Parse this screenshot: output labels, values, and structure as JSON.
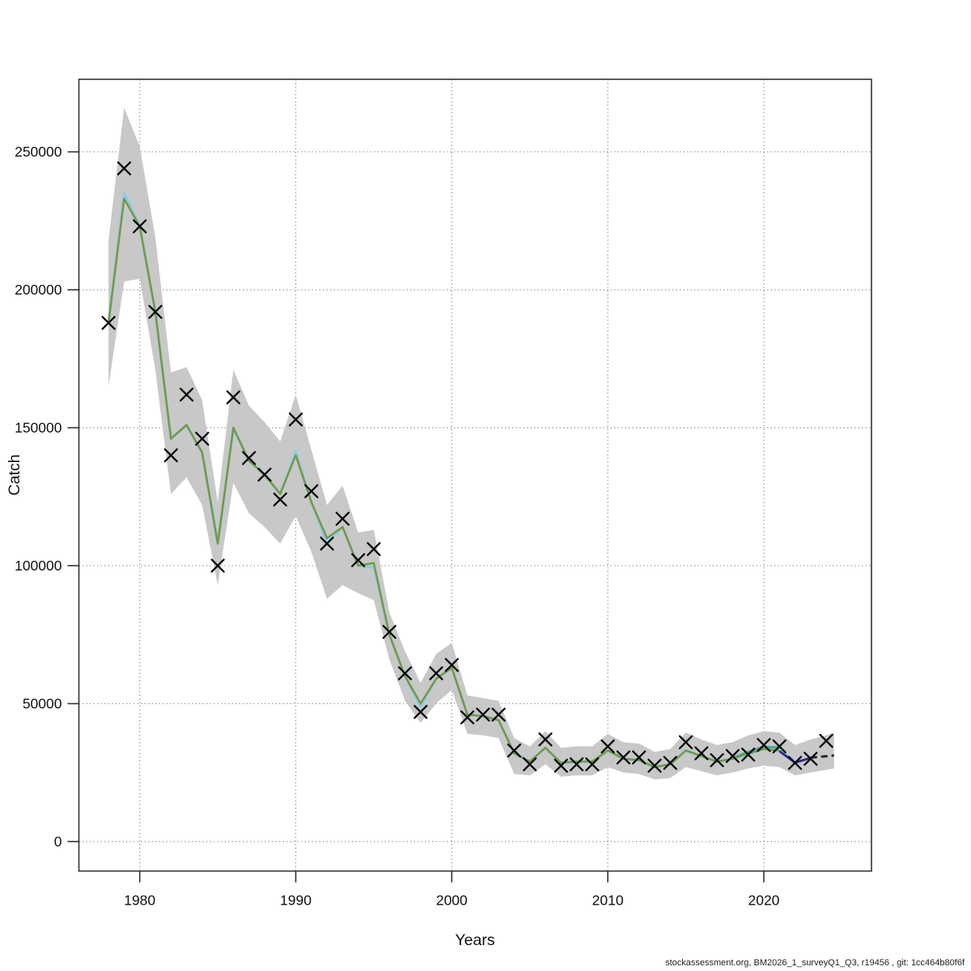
{
  "page": {
    "background": "#ffffff"
  },
  "footer": {
    "text": "stockassessment.org, BM2026_1_surveyQ1_Q3, r19456 , git: 1cc464b80f6f"
  },
  "chart_data": {
    "type": "line",
    "title": "",
    "xlabel": "Years",
    "ylabel": "Catch",
    "xlim": [
      1976.1,
      2026.9
    ],
    "ylim": [
      -10700,
      276300
    ],
    "x_ticks": [
      1980,
      1990,
      2000,
      2010,
      2020
    ],
    "y_ticks": [
      0,
      50000,
      100000,
      150000,
      200000,
      250000
    ],
    "grid": "dotted",
    "grid_color": "#9a9a9a",
    "frame_color": "#333333",
    "band": {
      "name": "confidence-band",
      "color": "#c8c8c8",
      "x": [
        1978,
        1979,
        1980,
        1981,
        1982,
        1983,
        1984,
        1985,
        1986,
        1987,
        1988,
        1989,
        1990,
        1991,
        1992,
        1993,
        1994,
        1995,
        1996,
        1997,
        1998,
        1999,
        2000,
        2001,
        2002,
        2003,
        2004,
        2005,
        2006,
        2007,
        2008,
        2009,
        2010,
        2011,
        2012,
        2013,
        2014,
        2015,
        2016,
        2017,
        2018,
        2019,
        2020,
        2021,
        2022,
        2023,
        2024,
        2024.5
      ],
      "lo": [
        165000,
        203000,
        204000,
        171000,
        126000,
        132000,
        122000,
        93000,
        130000,
        119000,
        114000,
        108000,
        118000,
        105000,
        88000,
        93000,
        90000,
        87500,
        66000,
        51000,
        43000,
        50000,
        55000,
        39000,
        38500,
        37500,
        24500,
        24000,
        28000,
        23500,
        24000,
        24000,
        27000,
        25000,
        24500,
        22500,
        23000,
        27000,
        25500,
        24000,
        25000,
        26500,
        27500,
        27000,
        24000,
        25000,
        26000,
        26500
      ],
      "hi": [
        218000,
        266000,
        252000,
        219000,
        170000,
        172000,
        160000,
        123000,
        171000,
        158000,
        152000,
        145000,
        162000,
        142000,
        122000,
        129000,
        112000,
        113000,
        83000,
        69000,
        57500,
        68000,
        72000,
        53000,
        52000,
        51000,
        37500,
        34500,
        40000,
        34000,
        34500,
        34500,
        39000,
        36000,
        35500,
        32500,
        33500,
        39500,
        37000,
        35000,
        36000,
        38500,
        40000,
        39500,
        35000,
        37000,
        38500,
        39500
      ]
    },
    "series": [
      {
        "name": "fit-run-cyan",
        "type": "line",
        "color": "#88CCEE",
        "width": 3.4,
        "x": [
          1978,
          1979,
          1980,
          1981,
          1982,
          1983,
          1984,
          1985,
          1986,
          1987,
          1988,
          1989,
          1990,
          1991,
          1992,
          1993,
          1994,
          1995,
          1996,
          1997,
          1998,
          1999,
          2000,
          2001,
          2002,
          2003,
          2004,
          2005,
          2006,
          2007,
          2008,
          2009,
          2010,
          2011,
          2012,
          2013,
          2014,
          2015,
          2016,
          2017,
          2018,
          2019,
          2020,
          2021,
          2022
        ],
        "values": [
          188000,
          235000,
          223000,
          192000,
          146000,
          151000,
          141000,
          108000,
          150000,
          138000,
          133000,
          126000,
          141500,
          123000,
          108500,
          114000,
          100000,
          99500,
          75000,
          60000,
          49000,
          59000,
          63000,
          46000,
          45500,
          44000,
          32000,
          29000,
          34000,
          28500,
          29000,
          29000,
          33000,
          30000,
          29500,
          27000,
          28000,
          33000,
          31000,
          29000,
          30000,
          31500,
          33800,
          33200,
          29000
        ]
      },
      {
        "name": "retro-run-teal",
        "type": "line",
        "color": "#44AA99",
        "width": 3.0,
        "x": [
          2018,
          2019,
          2020,
          2021
        ],
        "values": [
          30300,
          32500,
          34300,
          34100
        ]
      },
      {
        "name": "fit-run-green",
        "type": "line",
        "color": "#78963C",
        "width": 2.4,
        "x": [
          1978,
          1979,
          1980,
          1981,
          1982,
          1983,
          1984,
          1985,
          1986,
          1987,
          1988,
          1989,
          1990,
          1991,
          1992,
          1993,
          1994,
          1995,
          1996,
          1997,
          1998,
          1999,
          2000,
          2001,
          2002,
          2003,
          2004,
          2005,
          2006,
          2007,
          2008,
          2009,
          2010,
          2011,
          2012,
          2013,
          2014,
          2015,
          2016,
          2017,
          2018,
          2019,
          2020,
          2021
        ],
        "values": [
          188000,
          233000,
          223000,
          192000,
          146000,
          151000,
          141000,
          108000,
          150000,
          138000,
          133000,
          126000,
          140000,
          123000,
          110000,
          114000,
          100000,
          101000,
          75000,
          60000,
          50000,
          59000,
          63000,
          46000,
          45500,
          44000,
          32000,
          29000,
          34000,
          28500,
          29000,
          29000,
          33000,
          30000,
          29500,
          27000,
          28000,
          33000,
          31000,
          29000,
          30000,
          32000,
          33500,
          33000
        ]
      },
      {
        "name": "retro-run-navy",
        "type": "line",
        "color": "#332288",
        "width": 2.8,
        "x": [
          2021,
          2022,
          2023
        ],
        "values": [
          32800,
          28600,
          30300
        ]
      },
      {
        "name": "forecast-median",
        "type": "line",
        "color": "#222222",
        "width": 2.8,
        "dash": "8 5",
        "x": [
          2023,
          2024.5
        ],
        "values": [
          30400,
          31200
        ]
      },
      {
        "name": "observed-catch",
        "type": "scatter",
        "marker": "x",
        "color": "#0a0a0a",
        "marker_size": 7.5,
        "marker_stroke": 2.3,
        "x": [
          1978,
          1979,
          1980,
          1981,
          1982,
          1983,
          1984,
          1985,
          1986,
          1987,
          1988,
          1989,
          1990,
          1991,
          1992,
          1993,
          1994,
          1995,
          1996,
          1997,
          1998,
          1999,
          2000,
          2001,
          2002,
          2003,
          2004,
          2005,
          2006,
          2007,
          2008,
          2009,
          2010,
          2011,
          2012,
          2013,
          2014,
          2015,
          2016,
          2017,
          2018,
          2019,
          2020,
          2021,
          2022,
          2023,
          2024
        ],
        "values": [
          188000,
          244000,
          223000,
          192000,
          140000,
          162000,
          146000,
          100000,
          161000,
          139000,
          133000,
          124000,
          153000,
          127000,
          108000,
          117000,
          102000,
          106000,
          76000,
          61000,
          47000,
          61000,
          64000,
          45000,
          46000,
          46000,
          33000,
          28000,
          37000,
          27500,
          28000,
          28000,
          34500,
          30500,
          30500,
          27500,
          28500,
          36000,
          32000,
          29500,
          31000,
          31500,
          35000,
          34500,
          28500,
          30000,
          36500
        ]
      }
    ]
  }
}
